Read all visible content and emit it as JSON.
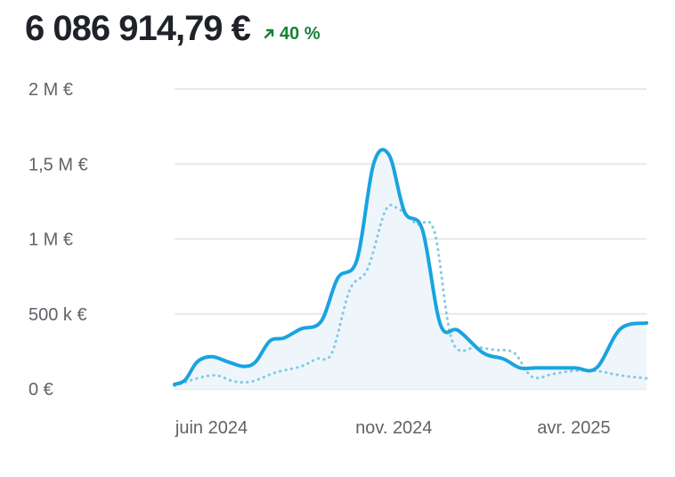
{
  "header": {
    "total_value": "6 086 914,79 €",
    "change_text": "40 %",
    "change_direction": "up",
    "change_icon": "arrow-up-right-icon",
    "change_color": "#188038"
  },
  "colors": {
    "primary_series": "#1aa3e0",
    "comparison_series": "#86c8e6",
    "area_fill": "#eef6fc",
    "grid": "#e6e8eb"
  },
  "chart_data": {
    "type": "line",
    "x_range": [
      "2024-05-01",
      "2025-06-01"
    ],
    "ylim": [
      0,
      2000000
    ],
    "grid": true,
    "y_ticks": [
      {
        "value": 0,
        "label": "0 €"
      },
      {
        "value": 500000,
        "label": "500 k €"
      },
      {
        "value": 1000000,
        "label": "1 M €"
      },
      {
        "value": 1500000,
        "label": "1,5 M €"
      },
      {
        "value": 2000000,
        "label": "2 M €"
      }
    ],
    "x_ticks": [
      {
        "date": "2024-06-01",
        "label": "juin 2024"
      },
      {
        "date": "2024-11-01",
        "label": "nov. 2024"
      },
      {
        "date": "2025-04-01",
        "label": "avr. 2025"
      }
    ],
    "series": [
      {
        "style": "solid",
        "points": [
          [
            "2024-05-01",
            30000
          ],
          [
            "2024-05-10",
            60000
          ],
          [
            "2024-05-20",
            180000
          ],
          [
            "2024-06-01",
            215000
          ],
          [
            "2024-06-15",
            180000
          ],
          [
            "2024-06-28",
            150000
          ],
          [
            "2024-07-08",
            180000
          ],
          [
            "2024-07-20",
            320000
          ],
          [
            "2024-08-01",
            340000
          ],
          [
            "2024-08-15",
            400000
          ],
          [
            "2024-09-01",
            450000
          ],
          [
            "2024-09-15",
            740000
          ],
          [
            "2024-10-01",
            860000
          ],
          [
            "2024-10-15",
            1500000
          ],
          [
            "2024-10-28",
            1560000
          ],
          [
            "2024-11-10",
            1180000
          ],
          [
            "2024-11-25",
            1060000
          ],
          [
            "2024-12-10",
            430000
          ],
          [
            "2024-12-25",
            390000
          ],
          [
            "2025-01-15",
            240000
          ],
          [
            "2025-02-01",
            200000
          ],
          [
            "2025-02-15",
            140000
          ],
          [
            "2025-03-01",
            140000
          ],
          [
            "2025-04-01",
            140000
          ],
          [
            "2025-04-20",
            140000
          ],
          [
            "2025-05-10",
            400000
          ],
          [
            "2025-06-01",
            440000
          ]
        ]
      },
      {
        "style": "dotted",
        "points": [
          [
            "2024-05-01",
            20000
          ],
          [
            "2024-05-20",
            70000
          ],
          [
            "2024-06-05",
            90000
          ],
          [
            "2024-06-20",
            50000
          ],
          [
            "2024-07-05",
            50000
          ],
          [
            "2024-07-25",
            110000
          ],
          [
            "2024-08-15",
            150000
          ],
          [
            "2024-08-28",
            200000
          ],
          [
            "2024-09-10",
            240000
          ],
          [
            "2024-09-25",
            660000
          ],
          [
            "2024-10-10",
            800000
          ],
          [
            "2024-10-25",
            1190000
          ],
          [
            "2024-11-05",
            1200000
          ],
          [
            "2024-11-20",
            1100000
          ],
          [
            "2024-12-05",
            1050000
          ],
          [
            "2024-12-20",
            320000
          ],
          [
            "2025-01-10",
            280000
          ],
          [
            "2025-01-25",
            260000
          ],
          [
            "2025-02-10",
            240000
          ],
          [
            "2025-02-25",
            80000
          ],
          [
            "2025-03-15",
            100000
          ],
          [
            "2025-04-01",
            120000
          ],
          [
            "2025-04-20",
            120000
          ],
          [
            "2025-05-10",
            90000
          ],
          [
            "2025-06-01",
            70000
          ]
        ]
      }
    ]
  }
}
